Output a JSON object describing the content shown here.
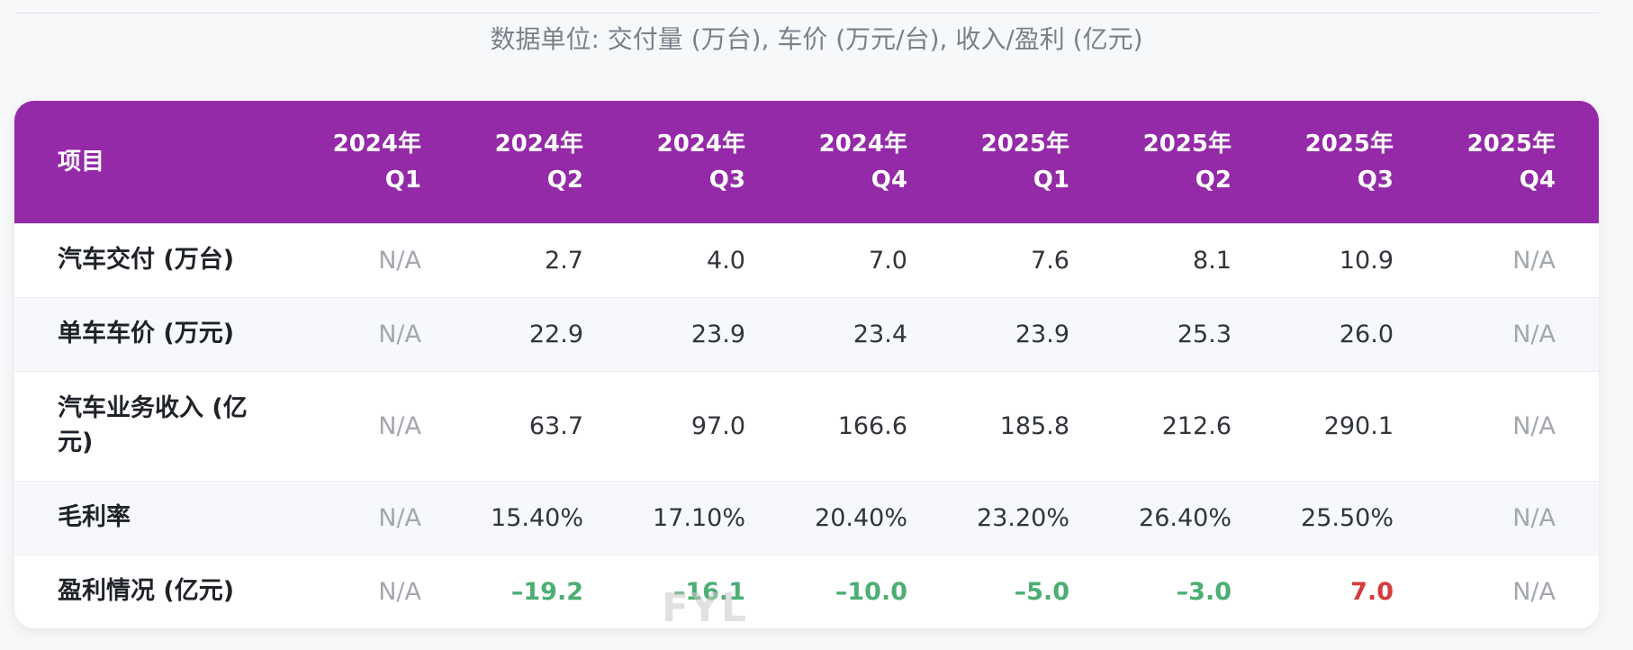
{
  "subtitle": "数据单位: 交付量 (万台), 车价 (万元/台), 收入/盈利 (亿元)",
  "colors": {
    "header_bg": "#942aa8",
    "negative": "#4cae73",
    "positive": "#d63b3b",
    "na": "#a3a7ae"
  },
  "table": {
    "header_item": "项目",
    "columns": [
      {
        "year": "2024年",
        "quarter": "Q1"
      },
      {
        "year": "2024年",
        "quarter": "Q2"
      },
      {
        "year": "2024年",
        "quarter": "Q3"
      },
      {
        "year": "2024年",
        "quarter": "Q4"
      },
      {
        "year": "2025年",
        "quarter": "Q1"
      },
      {
        "year": "2025年",
        "quarter": "Q2"
      },
      {
        "year": "2025年",
        "quarter": "Q3"
      },
      {
        "year": "2025年",
        "quarter": "Q4"
      }
    ],
    "rows": [
      {
        "label": "汽车交付 (万台)",
        "values": [
          "N/A",
          "2.7",
          "4.0",
          "7.0",
          "7.6",
          "8.1",
          "10.9",
          "N/A"
        ]
      },
      {
        "label": "单车车价 (万元)",
        "values": [
          "N/A",
          "22.9",
          "23.9",
          "23.4",
          "23.9",
          "25.3",
          "26.0",
          "N/A"
        ]
      },
      {
        "label": "汽车业务收入 (亿元)",
        "values": [
          "N/A",
          "63.7",
          "97.0",
          "166.6",
          "185.8",
          "212.6",
          "290.1",
          "N/A"
        ]
      },
      {
        "label": "毛利率",
        "values": [
          "N/A",
          "15.40%",
          "17.10%",
          "20.40%",
          "23.20%",
          "26.40%",
          "25.50%",
          "N/A"
        ]
      },
      {
        "label": "盈利情况 (亿元)",
        "values": [
          "N/A",
          "–19.2",
          "–16.1",
          "–10.0",
          "–5.0",
          "–3.0",
          "7.0",
          "N/A"
        ]
      }
    ]
  },
  "watermark": "FYL"
}
